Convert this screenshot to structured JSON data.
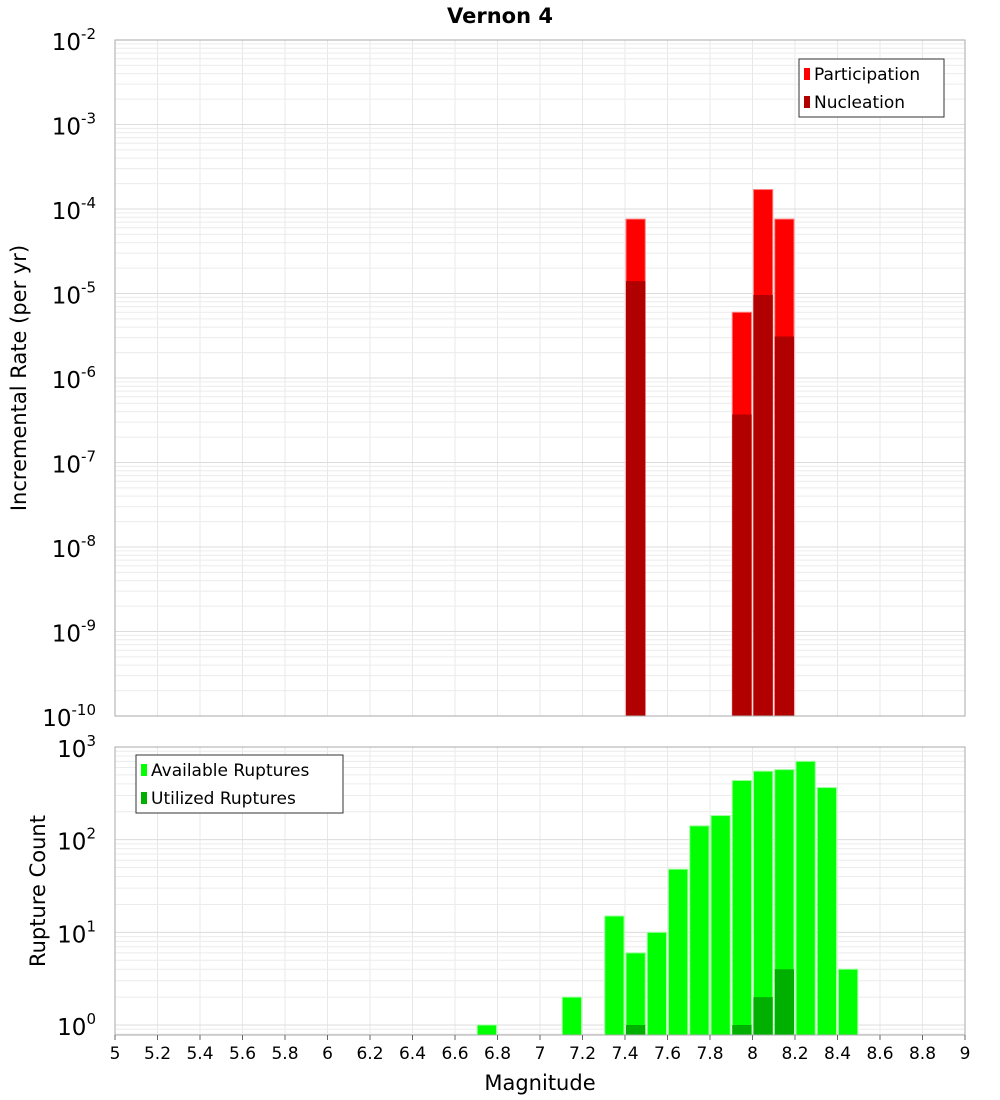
{
  "chart_data": [
    {
      "type": "bar",
      "title": "Vernon 4",
      "xlabel": "Magnitude",
      "ylabel": "Incremental Rate (per yr)",
      "yscale": "log",
      "ylim": [
        1e-10,
        0.01
      ],
      "xlim": [
        5,
        9
      ],
      "grid": true,
      "legend_position": "top-right",
      "ytick_exponents": [
        "-10",
        "-9",
        "-8",
        "-7",
        "-6",
        "-5",
        "-4",
        "-3",
        "-2"
      ],
      "series": [
        {
          "name": "Participation",
          "color": "#ff0000",
          "x": [
            7.45,
            7.95,
            8.05,
            8.15
          ],
          "values": [
            7.6e-05,
            6e-06,
            0.00017,
            7.6e-05
          ]
        },
        {
          "name": "Nucleation",
          "color": "#b00000",
          "x": [
            7.45,
            7.95,
            8.05,
            8.15
          ],
          "values": [
            1.4e-05,
            3.7e-07,
            9.6e-06,
            3.1e-06
          ]
        }
      ]
    },
    {
      "type": "bar",
      "xlabel": "Magnitude",
      "ylabel": "Rupture Count",
      "yscale": "log",
      "ylim": [
        0.78,
        1000
      ],
      "xlim": [
        5,
        9
      ],
      "grid": true,
      "legend_position": "top-left",
      "ytick_exponents": [
        "0",
        "1",
        "2",
        "3"
      ],
      "xticks": [
        "5",
        "5.2",
        "5.4",
        "5.6",
        "5.8",
        "6",
        "6.2",
        "6.4",
        "6.6",
        "6.8",
        "7",
        "7.2",
        "7.4",
        "7.6",
        "7.8",
        "8",
        "8.2",
        "8.4",
        "8.6",
        "8.8",
        "9"
      ],
      "series": [
        {
          "name": "Available Ruptures",
          "color": "#00ff00",
          "x": [
            6.75,
            7.15,
            7.35,
            7.45,
            7.55,
            7.65,
            7.75,
            7.85,
            7.95,
            8.05,
            8.15,
            8.25,
            8.35,
            8.45
          ],
          "values": [
            1,
            2,
            15,
            6,
            10,
            48,
            141,
            182,
            435,
            548,
            570,
            700,
            365,
            4
          ]
        },
        {
          "name": "Utilized Ruptures",
          "color": "#00b000",
          "x": [
            7.45,
            7.95,
            8.05,
            8.15
          ],
          "values": [
            1,
            1,
            2,
            4
          ]
        }
      ]
    }
  ]
}
